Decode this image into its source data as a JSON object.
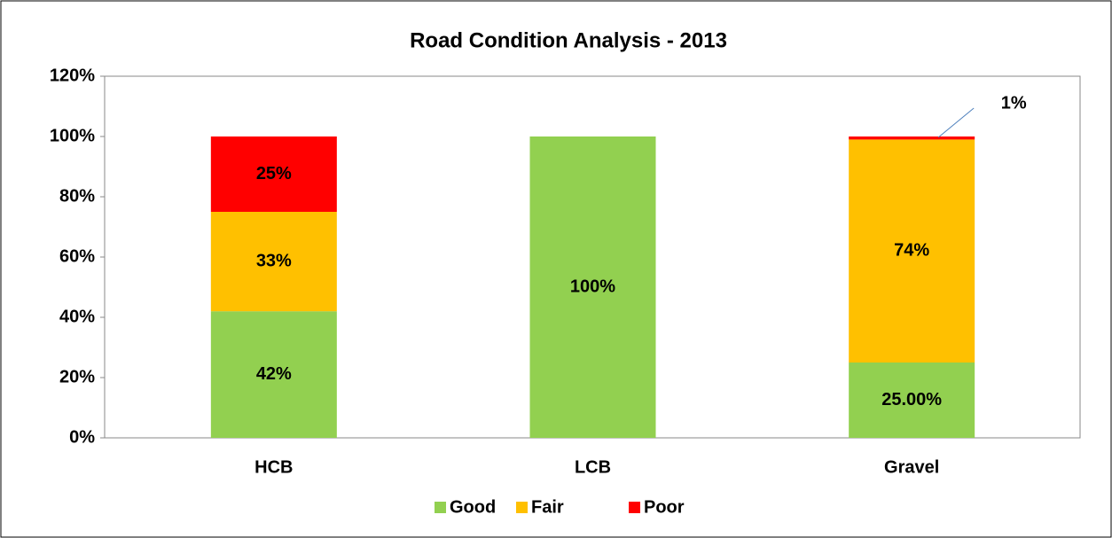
{
  "chart_data": {
    "type": "stacked_bar",
    "title": "Road Condition Analysis - 2013",
    "categories": [
      "HCB",
      "LCB",
      "Gravel"
    ],
    "series": [
      {
        "name": "Good",
        "color": "#92d050",
        "values": [
          42,
          100,
          25
        ],
        "value_labels": [
          "42%",
          "100%",
          "25.00%"
        ]
      },
      {
        "name": "Fair",
        "color": "#ffc000",
        "values": [
          33,
          0,
          74
        ],
        "value_labels": [
          "33%",
          null,
          "74%"
        ]
      },
      {
        "name": "Poor",
        "color": "#ff0000",
        "values": [
          25,
          0,
          1
        ],
        "value_labels": [
          "25%",
          null,
          "1%"
        ]
      }
    ],
    "ylim": [
      0,
      120
    ],
    "yticks": [
      {
        "value": 0,
        "label": "0%"
      },
      {
        "value": 20,
        "label": "20%"
      },
      {
        "value": 40,
        "label": "40%"
      },
      {
        "value": 60,
        "label": "60%"
      },
      {
        "value": 80,
        "label": "80%"
      },
      {
        "value": 100,
        "label": "100%"
      },
      {
        "value": 120,
        "label": "120%"
      }
    ],
    "grid": false,
    "legend": "bottom"
  }
}
